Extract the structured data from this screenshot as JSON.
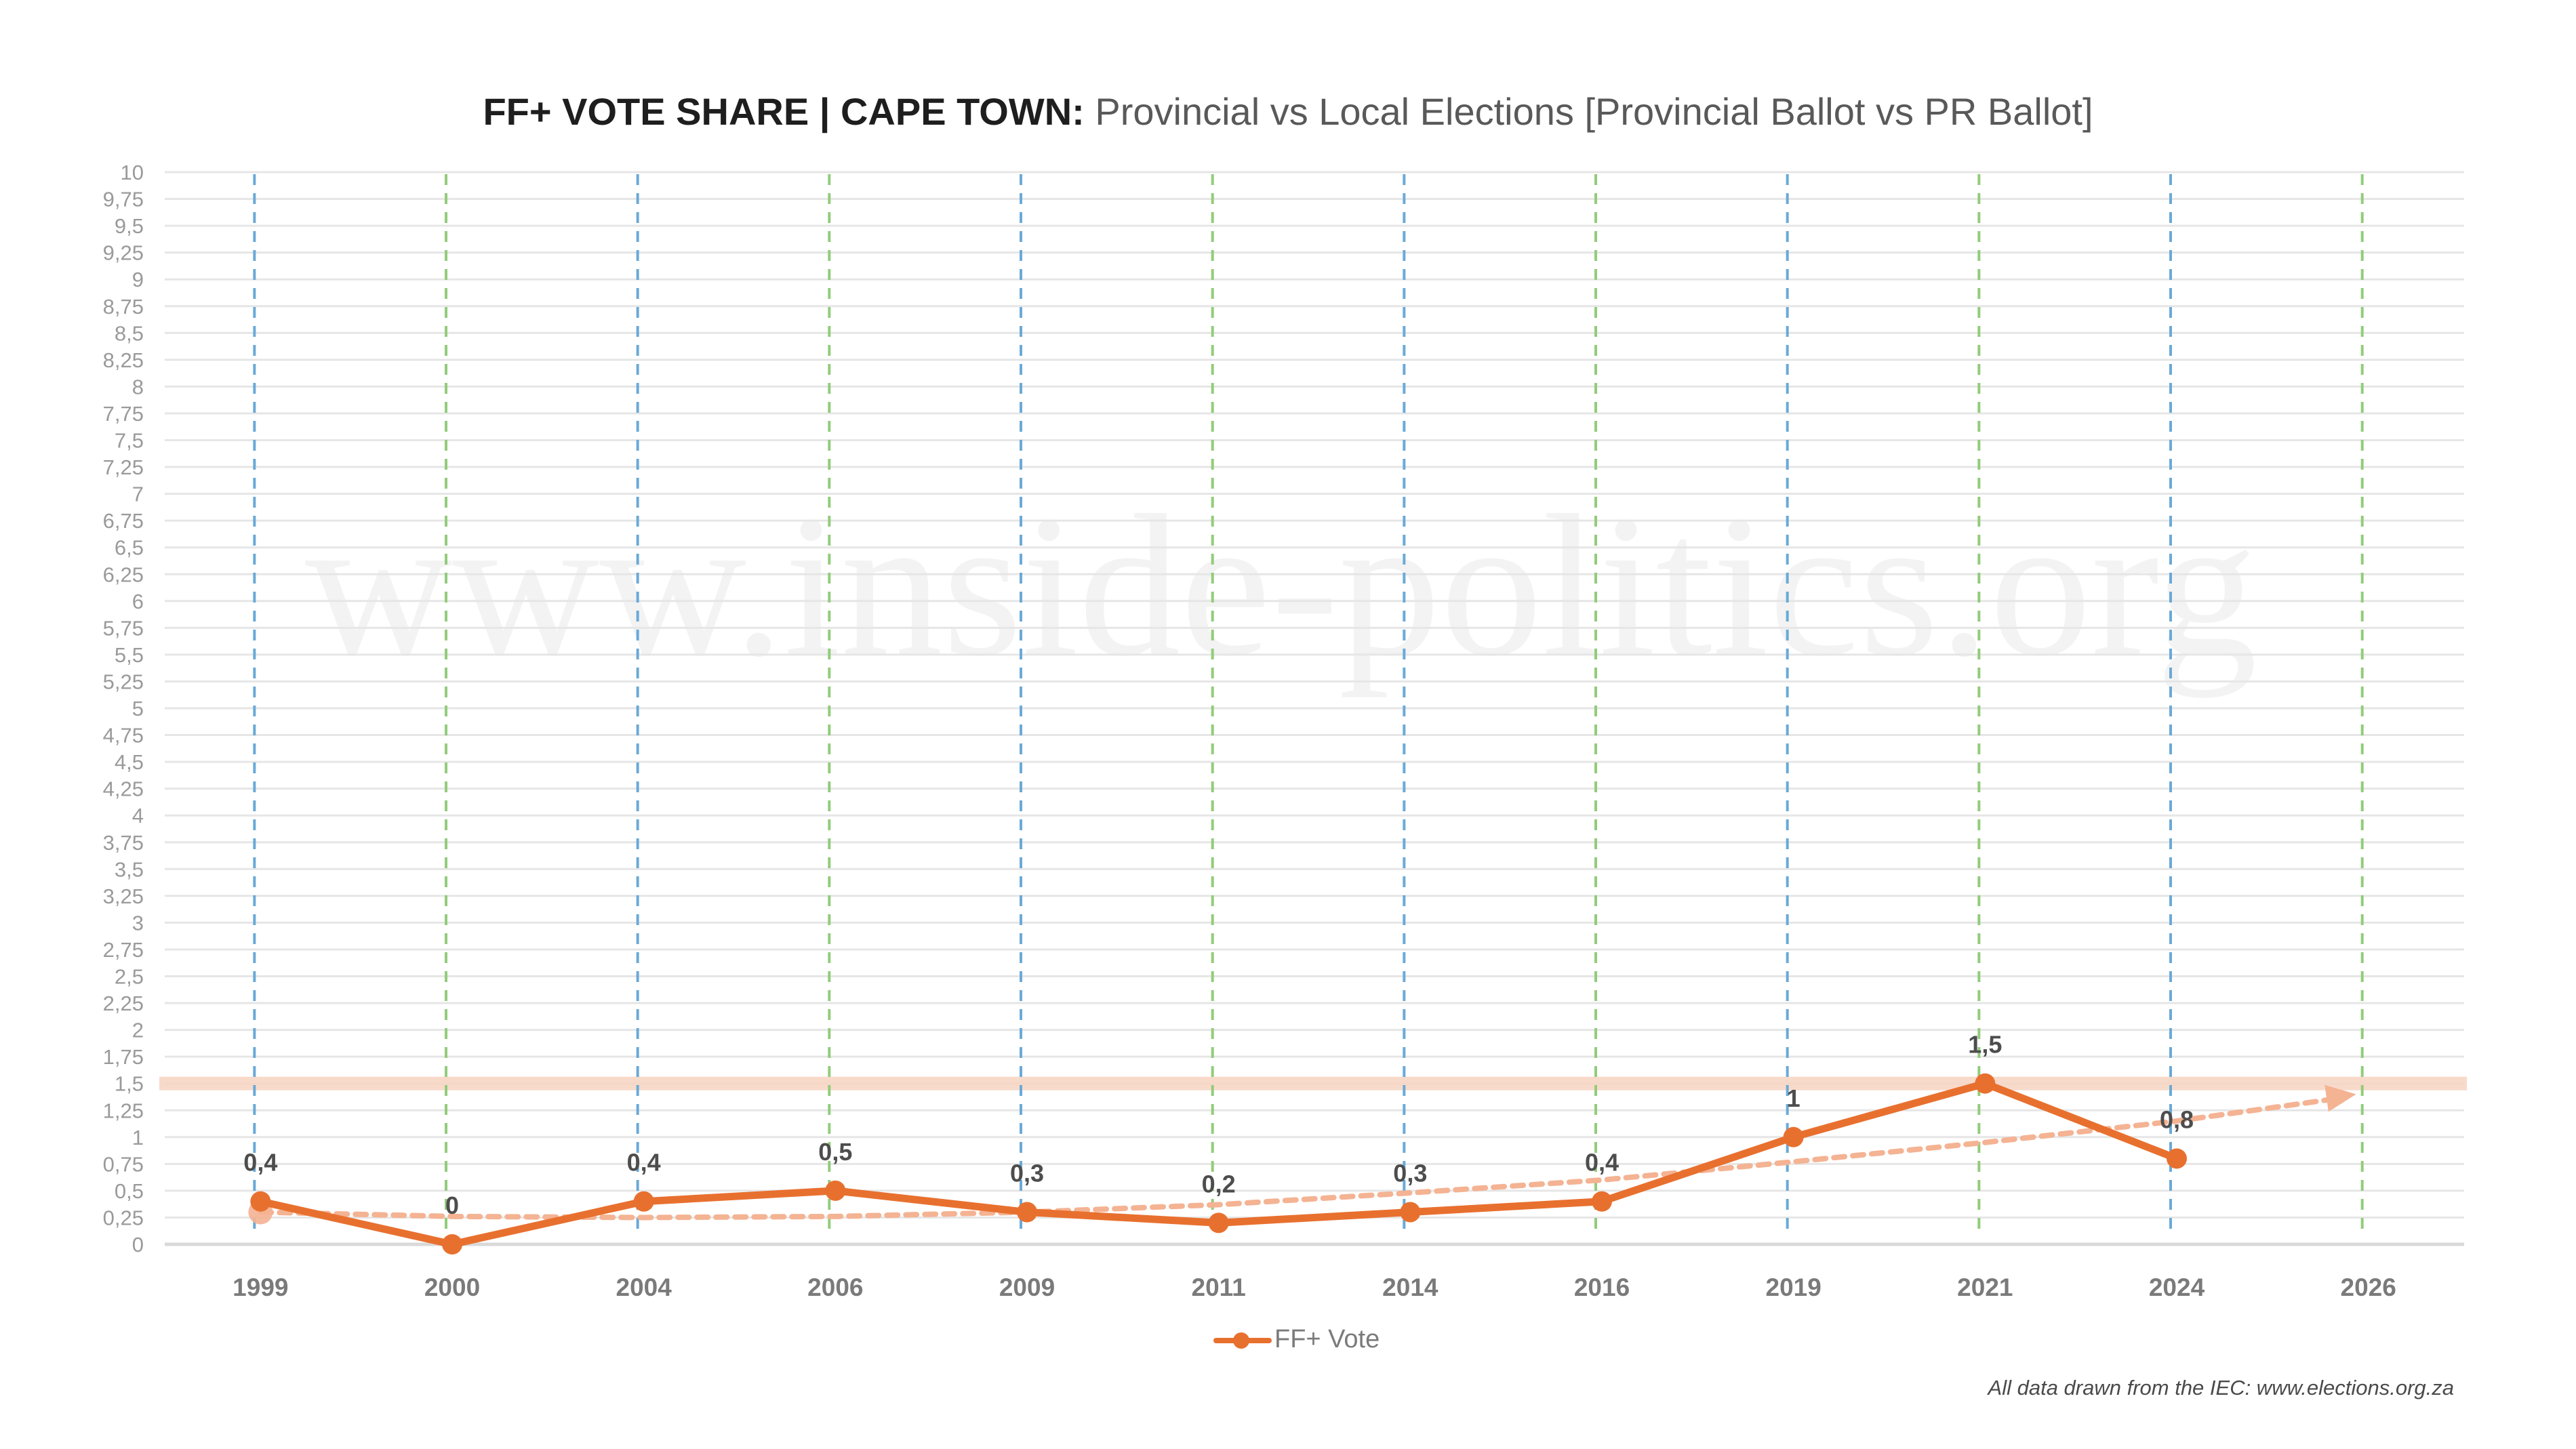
{
  "title": {
    "bold": "FF+ VOTE SHARE | CAPE TOWN:",
    "rest": " Provincial vs Local Elections [Provincial Ballot vs PR Ballot]"
  },
  "watermark": "www.inside-politics.org",
  "footer_note": "All data drawn from the IEC: www.elections.org.za",
  "chart_data": {
    "type": "line",
    "title": "FF+ VOTE SHARE | CAPE TOWN: Provincial vs Local Elections [Provincial Ballot vs PR Ballot]",
    "xlabel": "",
    "ylabel": "",
    "categories": [
      "1999",
      "2000",
      "2004",
      "2006",
      "2009",
      "2011",
      "2014",
      "2016",
      "2019",
      "2021",
      "2024",
      "2026"
    ],
    "series": [
      {
        "name": "FF+ Vote",
        "color": "#e8702f",
        "values": [
          0.4,
          0,
          0.4,
          0.5,
          0.3,
          0.2,
          0.3,
          0.4,
          1,
          1.5,
          0.8,
          null
        ],
        "labels": [
          "0,4",
          "0",
          "0,4",
          "0,5",
          "0,3",
          "0,2",
          "0,3",
          "0,4",
          "1",
          "1,5",
          "0,8",
          ""
        ]
      }
    ],
    "trendline": {
      "name": "trend",
      "color": "#f4b393",
      "style": "dashed-arrow",
      "values": [
        0.3,
        0.26,
        0.25,
        0.26,
        0.3,
        0.37,
        0.48,
        0.6,
        0.77,
        0.95,
        1.15,
        1.4
      ]
    },
    "reference_band": {
      "value": 1.5,
      "color": "#f7d3c2"
    },
    "election_markers": {
      "provincial": {
        "color": "#6aaad8",
        "categories": [
          "1999",
          "2004",
          "2009",
          "2014",
          "2019",
          "2024"
        ]
      },
      "local": {
        "color": "#92cc7a",
        "categories": [
          "2000",
          "2006",
          "2011",
          "2016",
          "2021",
          "2026"
        ]
      }
    },
    "ylim": [
      0,
      10
    ],
    "y_step": 0.25,
    "y_tick_labels": [
      "0",
      "0,25",
      "0,5",
      "0,75",
      "1",
      "1,25",
      "1,5",
      "1,75",
      "2",
      "2,25",
      "2,5",
      "2,75",
      "3",
      "3,25",
      "3,5",
      "3,75",
      "4",
      "4,25",
      "4,5",
      "4,75",
      "5",
      "5,25",
      "5,5",
      "5,75",
      "6",
      "6,25",
      "6,5",
      "6,75",
      "7",
      "7,25",
      "7,5",
      "7,75",
      "8",
      "8,25",
      "8,5",
      "8,75",
      "9",
      "9,25",
      "9,5",
      "9,75",
      "10"
    ],
    "grid": true,
    "legend": {
      "position": "bottom-center",
      "entries": [
        "FF+ Vote"
      ]
    }
  }
}
